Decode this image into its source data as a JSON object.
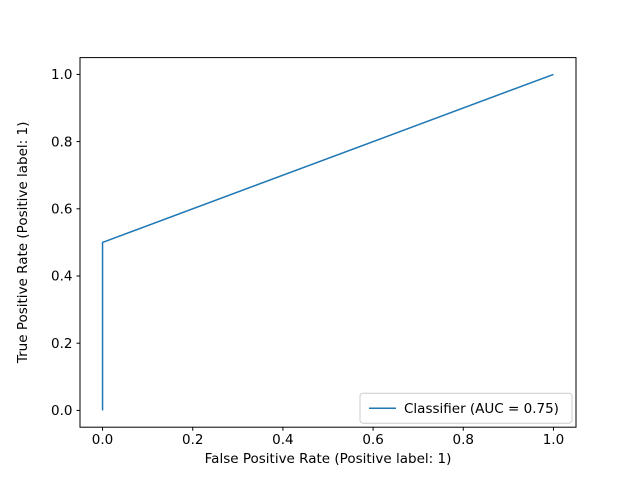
{
  "chart_data": {
    "type": "line",
    "title": "",
    "xlabel": "False Positive Rate (Positive label: 1)",
    "ylabel": "True Positive Rate (Positive label: 1)",
    "xlim": [
      -0.05,
      1.05
    ],
    "ylim": [
      -0.05,
      1.05
    ],
    "xticks": [
      0.0,
      0.2,
      0.4,
      0.6,
      0.8,
      1.0
    ],
    "yticks": [
      0.0,
      0.2,
      0.4,
      0.6,
      0.8,
      1.0
    ],
    "xtick_labels": [
      "0.0",
      "0.2",
      "0.4",
      "0.6",
      "0.8",
      "1.0"
    ],
    "ytick_labels": [
      "0.0",
      "0.2",
      "0.4",
      "0.6",
      "0.8",
      "1.0"
    ],
    "grid": false,
    "legend_position": "lower right",
    "series": [
      {
        "name": "Classifier (AUC = 0.75)",
        "color": "#1f77b4",
        "points": [
          [
            0.0,
            0.0
          ],
          [
            0.0,
            0.5
          ],
          [
            1.0,
            1.0
          ]
        ]
      }
    ]
  },
  "legend": {
    "label": "Classifier (AUC = 0.75)"
  },
  "colors": {
    "line": "#1f77b4",
    "spine": "#000000",
    "text": "#000000",
    "background": "#ffffff",
    "legend_border": "#cccccc",
    "legend_fill": "rgba(255,255,255,0.8)"
  }
}
